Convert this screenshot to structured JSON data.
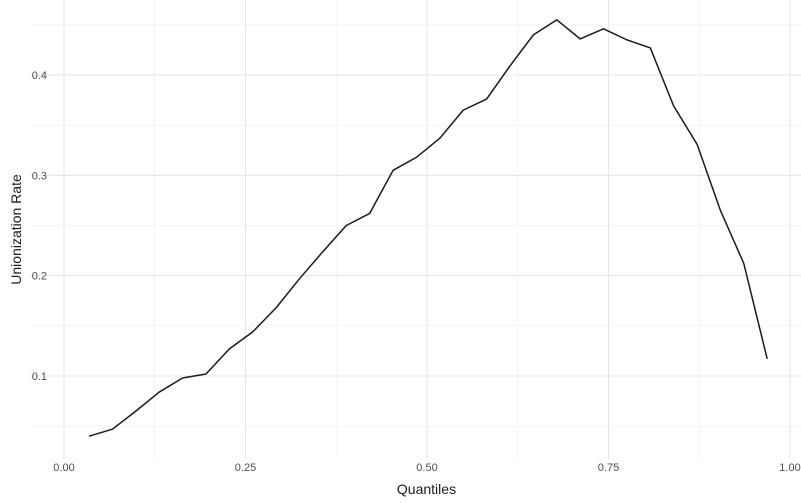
{
  "chart_data": {
    "type": "line",
    "title": "",
    "xlabel": "Quantiles",
    "ylabel": "Unionization Rate",
    "xlim": [
      0,
      1
    ],
    "ylim": [
      0.012,
      0.475
    ],
    "x_ticks": [
      0.0,
      0.25,
      0.5,
      0.75,
      1.0
    ],
    "x_tick_labels": [
      "0.00",
      "0.25",
      "0.50",
      "0.75",
      "1.00"
    ],
    "y_ticks": [
      0.1,
      0.2,
      0.3,
      0.4
    ],
    "y_tick_labels": [
      "0.1",
      "0.2",
      "0.3",
      "0.4"
    ],
    "grid": true,
    "legend": "none",
    "line_color": "#1a1a1a",
    "series": [
      {
        "x": [
          0.0345,
          0.0667,
          0.0989,
          0.1312,
          0.1634,
          0.1956,
          0.2278,
          0.26,
          0.2922,
          0.3244,
          0.3566,
          0.3888,
          0.421,
          0.4533,
          0.4855,
          0.5177,
          0.5499,
          0.5821,
          0.6143,
          0.6465,
          0.6787,
          0.7109,
          0.7431,
          0.7754,
          0.8076,
          0.8398,
          0.872,
          0.9042,
          0.9364,
          0.9686
        ],
        "y": [
          0.04,
          0.047,
          0.065,
          0.084,
          0.098,
          0.102,
          0.127,
          0.144,
          0.168,
          0.197,
          0.224,
          0.25,
          0.262,
          0.305,
          0.318,
          0.337,
          0.365,
          0.376,
          0.409,
          0.44,
          0.455,
          0.436,
          0.446,
          0.435,
          0.427,
          0.369,
          0.331,
          0.265,
          0.212,
          0.117
        ]
      }
    ]
  }
}
